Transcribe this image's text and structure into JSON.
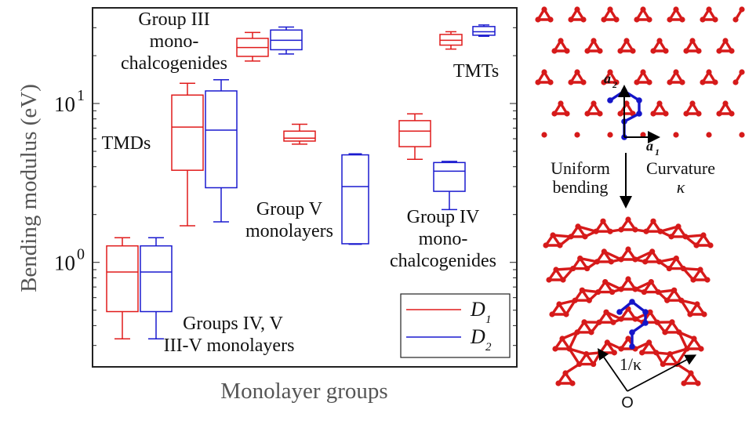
{
  "chart_data": {
    "type": "box",
    "xlabel": "Monolayer groups",
    "ylabel": "Bending modulus (eV)",
    "yscale": "log",
    "ylim": [
      0.22,
      40
    ],
    "yticks": [
      {
        "base": "10",
        "exp": "0",
        "value": 1
      },
      {
        "base": "10",
        "exp": "1",
        "value": 10
      }
    ],
    "grid": false,
    "legend_position": "bottom-right",
    "series": [
      {
        "name": "D",
        "subscript": "1",
        "color": "#e01b1b"
      },
      {
        "name": "D",
        "subscript": "2",
        "color": "#1a1acf"
      }
    ],
    "groups": [
      {
        "label_lines": [
          "Groups IV, V",
          "III-V monolayers"
        ],
        "boxes": [
          {
            "series": 0,
            "whislo": 0.33,
            "q1": 0.49,
            "median": 0.87,
            "q3": 1.27,
            "whishi": 1.43
          },
          {
            "series": 1,
            "whislo": 0.33,
            "q1": 0.49,
            "median": 0.87,
            "q3": 1.27,
            "whishi": 1.43
          }
        ]
      },
      {
        "label_lines": [
          "TMDs"
        ],
        "boxes": [
          {
            "series": 0,
            "whislo": 1.7,
            "q1": 3.8,
            "median": 7.1,
            "q3": 11.3,
            "whishi": 13.4
          },
          {
            "series": 1,
            "whislo": 1.8,
            "q1": 2.95,
            "median": 6.8,
            "q3": 12.0,
            "whishi": 14.1
          }
        ]
      },
      {
        "label_lines": [
          "Group III",
          "mono-",
          "chalcogenides"
        ],
        "boxes": [
          {
            "series": 0,
            "whislo": 18.5,
            "q1": 19.8,
            "median": 22.5,
            "q3": 25.7,
            "whishi": 28.0
          },
          {
            "series": 1,
            "whislo": 20.5,
            "q1": 21.8,
            "median": 25.0,
            "q3": 29.0,
            "whishi": 30.3
          }
        ]
      },
      {
        "label_lines": [
          "Group V",
          "monolayers"
        ],
        "boxes": [
          {
            "series": 0,
            "whislo": 5.55,
            "q1": 5.8,
            "median": 6.05,
            "q3": 6.7,
            "whishi": 7.4
          },
          {
            "series": 1,
            "whislo": 1.3,
            "q1": 1.31,
            "median": 3.0,
            "q3": 4.75,
            "whishi": 4.82
          }
        ]
      },
      {
        "label_lines": [
          "Group IV",
          "mono-",
          "chalcogenides"
        ],
        "boxes": [
          {
            "series": 0,
            "whislo": 4.45,
            "q1": 5.35,
            "median": 6.7,
            "q3": 7.8,
            "whishi": 8.6
          },
          {
            "series": 1,
            "whislo": 2.15,
            "q1": 2.8,
            "median": 3.75,
            "q3": 4.25,
            "whishi": 4.32
          }
        ]
      },
      {
        "label_lines": [
          "TMTs"
        ],
        "boxes": [
          {
            "series": 0,
            "whislo": 22.0,
            "q1": 23.3,
            "median": 25.0,
            "q3": 27.2,
            "whishi": 28.3
          },
          {
            "series": 1,
            "whislo": 26.5,
            "q1": 26.9,
            "median": 28.3,
            "q3": 30.5,
            "whishi": 31.2
          }
        ]
      }
    ]
  },
  "schematic": {
    "lattice_vector_1": {
      "base": "a",
      "subscript": "1"
    },
    "lattice_vector_2": {
      "base": "a",
      "subscript": "2"
    },
    "label_uniform_lines": [
      "Uniform",
      "bending"
    ],
    "label_curvature": "Curvature",
    "curvature_symbol": "κ",
    "radius_label": "1/κ",
    "center_label": "O",
    "atom_color": "#d61a1a",
    "highlight_color": "#1515c8"
  }
}
